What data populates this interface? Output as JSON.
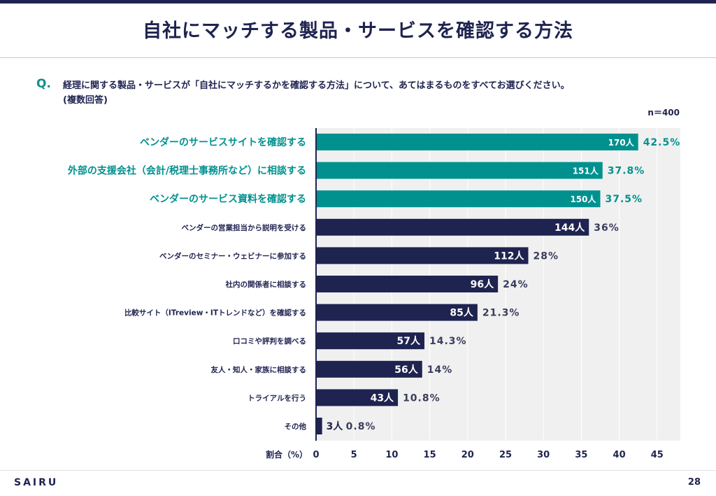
{
  "header": {
    "title": "自社にマッチする製品・サービスを確認する方法"
  },
  "question": {
    "mark": "Q.",
    "text": "経理に関する製品・サービスが「自社にマッチするかを確認する方法」について、あてはまるものをすべてお選びください。",
    "note": "(複数回答)",
    "n": "n＝400"
  },
  "footer": {
    "logo": "SAIRU",
    "page": "28"
  },
  "colors": {
    "highlight": "#00918f",
    "default": "#1f2350",
    "plot_bg": "#f0f0f0"
  },
  "chart_data": {
    "type": "bar",
    "orientation": "horizontal",
    "xlabel": "割合（%）",
    "xlim": [
      0,
      48
    ],
    "xticks": [
      0,
      5,
      10,
      15,
      20,
      25,
      30,
      35,
      40,
      45
    ],
    "categories": [
      "ベンダーのサービスサイトを確認する",
      "外部の支援会社（会計/税理士事務所など）に相談する",
      "ベンダーのサービス資料を確認する",
      "ベンダーの営業担当から説明を受ける",
      "ベンダーのセミナー・ウェビナーに参加する",
      "社内の関係者に相談する",
      "比較サイト（ITreview・ITトレンドなど）を確認する",
      "口コミや評判を調べる",
      "友人・知人・家族に相談する",
      "トライアルを行う",
      "その他"
    ],
    "values": [
      42.5,
      37.8,
      37.5,
      36,
      28,
      24,
      21.3,
      14.3,
      14,
      10.8,
      0.8
    ],
    "value_labels": [
      "42.5%",
      "37.8%",
      "37.5%",
      "36%",
      "28%",
      "24%",
      "21.3%",
      "14.3%",
      "14%",
      "10.8%",
      "0.8%"
    ],
    "counts": [
      "170人",
      "151人",
      "150人",
      "144人",
      "112人",
      "96人",
      "85人",
      "57人",
      "56人",
      "43人",
      "3人"
    ],
    "highlighted": [
      true,
      true,
      true,
      false,
      false,
      false,
      false,
      false,
      false,
      false,
      false
    ]
  }
}
